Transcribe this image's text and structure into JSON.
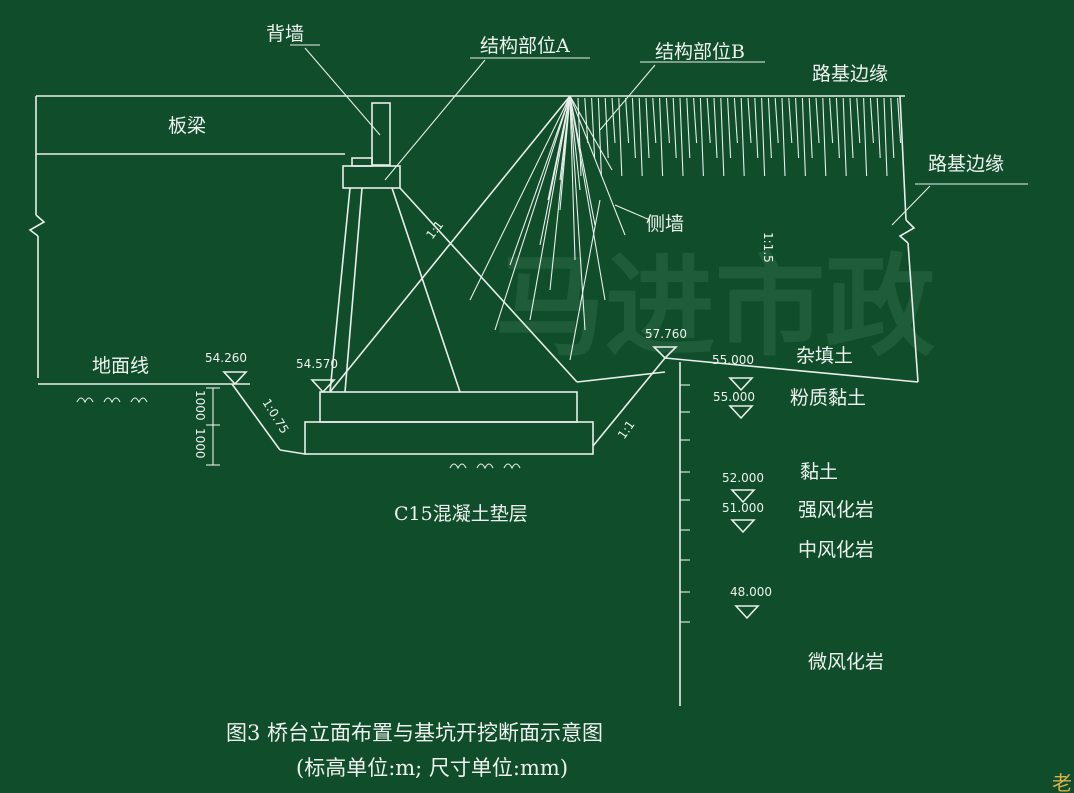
{
  "labels": {
    "back_wall": "背墙",
    "structure_a": "结构部位A",
    "structure_b": "结构部位B",
    "roadbed_edge_top": "路基边缘",
    "roadbed_edge_right": "路基边缘",
    "beam": "板梁",
    "side_wall": "侧墙",
    "ground_line": "地面线",
    "fill_soil": "杂填土",
    "silty_clay": "粉质黏土",
    "clay": "黏土",
    "strong_weathered": "强风化岩",
    "medium_weathered": "中风化岩",
    "slight_weathered": "微风化岩",
    "cushion": "C15混凝土垫层",
    "watermark": "马进市政",
    "corner_mark": "老"
  },
  "slopes": {
    "main": "1:1",
    "side": "1:1.5",
    "pit_left": "1:0.75",
    "pit_right": "1:1"
  },
  "elevations": {
    "e1": "54.260",
    "e2": "54.570",
    "e3": "57.760",
    "e4": "55.000",
    "e5": "55.000",
    "e6": "52.000",
    "e7": "51.000",
    "e8": "48.000"
  },
  "dims": {
    "d1": "1000",
    "d2": "1000"
  },
  "caption": {
    "line1": "图3   桥台立面布置与基坑开挖断面示意图",
    "line2": "(标高单位:m; 尺寸单位:mm)"
  },
  "colors": {
    "background": "#0f4d2b",
    "line": "#e9eee9"
  }
}
